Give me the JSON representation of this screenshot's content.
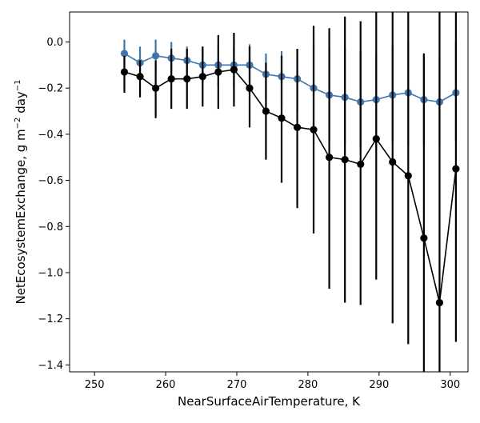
{
  "chart_data": {
    "type": "line",
    "title": "",
    "xlabel": "NearSurfaceAirTemperature,  K",
    "ylabel_parts": {
      "main": "NetEcosystemExchange,  g m",
      "exp1": "−2",
      "mid": " day",
      "exp2": "−1"
    },
    "xlim": [
      246.5,
      302.5
    ],
    "ylim": [
      -1.43,
      0.13
    ],
    "xticks": [
      250,
      260,
      270,
      280,
      290,
      300
    ],
    "xtick_labels": [
      "250",
      "260",
      "270",
      "280",
      "290",
      "300"
    ],
    "yticks": [
      0.0,
      -0.2,
      -0.4,
      -0.6,
      -0.8,
      -1.0,
      -1.2,
      -1.4
    ],
    "ytick_labels": [
      "0.0",
      "−0.2",
      "−0.4",
      "−0.6",
      "−0.8",
      "−1.0",
      "−1.2",
      "−1.4"
    ],
    "grid": false,
    "series": [
      {
        "color": "#3f76ab",
        "x": [
          254.2,
          256.4,
          258.6,
          260.8,
          263.0,
          265.2,
          267.4,
          269.6,
          271.8,
          274.1,
          276.3,
          278.5,
          280.8,
          283.0,
          285.2,
          287.4,
          289.6,
          291.9,
          294.1,
          296.3,
          298.5,
          300.8
        ],
        "y": [
          -0.05,
          -0.09,
          -0.06,
          -0.07,
          -0.08,
          -0.1,
          -0.1,
          -0.1,
          -0.1,
          -0.14,
          -0.15,
          -0.16,
          -0.2,
          -0.23,
          -0.24,
          -0.26,
          -0.25,
          -0.23,
          -0.22,
          -0.25,
          -0.26,
          -0.22
        ],
        "yerr_low": [
          -0.11,
          -0.16,
          -0.13,
          -0.14,
          -0.15,
          -0.18,
          -0.19,
          -0.2,
          -0.22,
          -0.25,
          -0.28,
          -0.3,
          -0.36,
          -0.43,
          -0.44,
          -0.47,
          -0.47,
          -0.44,
          -0.45,
          -0.45,
          -0.45,
          -0.43
        ],
        "yerr_high": [
          0.01,
          -0.02,
          0.01,
          0.0,
          -0.02,
          -0.02,
          -0.01,
          -0.02,
          -0.01,
          -0.05,
          -0.04,
          -0.03,
          -0.01,
          -0.02,
          -0.03,
          -0.04,
          -0.05,
          -0.02,
          0.0,
          -0.05,
          -0.07,
          0.0
        ]
      },
      {
        "color": "#000000",
        "x": [
          254.2,
          256.4,
          258.6,
          260.8,
          263.0,
          265.2,
          267.4,
          269.6,
          271.8,
          274.1,
          276.3,
          278.5,
          280.8,
          283.0,
          285.2,
          287.4,
          289.6,
          291.9,
          294.1,
          296.3,
          298.5,
          300.8
        ],
        "y": [
          -0.13,
          -0.15,
          -0.2,
          -0.16,
          -0.16,
          -0.15,
          -0.13,
          -0.12,
          -0.2,
          -0.3,
          -0.33,
          -0.37,
          -0.38,
          -0.5,
          -0.51,
          -0.53,
          -0.42,
          -0.52,
          -0.58,
          -0.85,
          -1.13,
          -0.55
        ],
        "yerr_low": [
          -0.22,
          -0.24,
          -0.33,
          -0.29,
          -0.29,
          -0.28,
          -0.29,
          -0.28,
          -0.37,
          -0.51,
          -0.61,
          -0.72,
          -0.83,
          -1.07,
          -1.13,
          -1.14,
          -1.03,
          -1.22,
          -1.31,
          -1.43,
          -1.43,
          -1.3
        ],
        "yerr_high": [
          -0.06,
          -0.08,
          -0.08,
          -0.03,
          -0.03,
          -0.02,
          0.03,
          0.04,
          -0.02,
          -0.09,
          -0.06,
          -0.03,
          0.07,
          0.06,
          0.11,
          0.09,
          0.13,
          0.13,
          0.13,
          -0.05,
          0.13,
          0.13
        ]
      }
    ]
  }
}
